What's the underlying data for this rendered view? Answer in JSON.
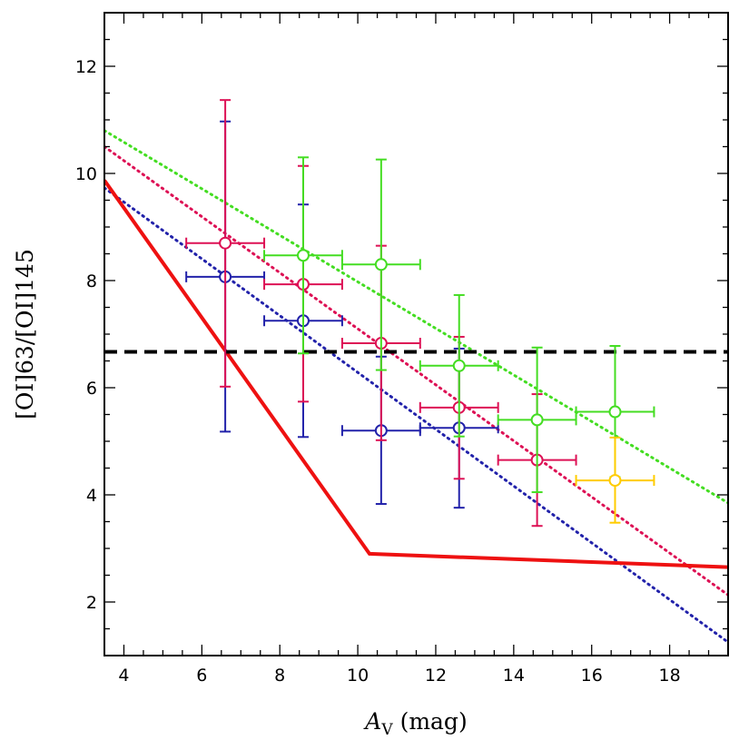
{
  "chart_data": {
    "type": "scatter",
    "xlabel_main": "A",
    "xlabel_sub": "V",
    "xlabel_unit": " (mag)",
    "ylabel": "[OI]63/[OI]145",
    "xlim": [
      3.5,
      19.5
    ],
    "ylim": [
      1.0,
      13.0
    ],
    "xticks": [
      4,
      6,
      8,
      10,
      12,
      14,
      16,
      18
    ],
    "yticks": [
      2,
      4,
      6,
      8,
      10,
      12
    ],
    "xminor": 0.5,
    "yminor": 0.5,
    "series": [
      {
        "name": "blue",
        "color": "#2222aa",
        "points": [
          {
            "x": 6.6,
            "y": 8.07,
            "xerr": 1.0,
            "ylo": 5.18,
            "yhi": 10.97
          },
          {
            "x": 8.6,
            "y": 7.25,
            "xerr": 1.0,
            "ylo": 5.08,
            "yhi": 9.42
          },
          {
            "x": 10.6,
            "y": 5.2,
            "xerr": 1.0,
            "ylo": 3.83,
            "yhi": 6.58
          },
          {
            "x": 12.6,
            "y": 5.25,
            "xerr": 1.0,
            "ylo": 3.76,
            "yhi": 6.73
          }
        ]
      },
      {
        "name": "magenta",
        "color": "#dd1155",
        "points": [
          {
            "x": 6.6,
            "y": 8.7,
            "xerr": 1.0,
            "ylo": 6.02,
            "yhi": 11.37
          },
          {
            "x": 8.6,
            "y": 7.93,
            "xerr": 1.0,
            "ylo": 5.74,
            "yhi": 10.14
          },
          {
            "x": 10.6,
            "y": 6.83,
            "xerr": 1.0,
            "ylo": 5.02,
            "yhi": 8.65
          },
          {
            "x": 12.6,
            "y": 5.63,
            "xerr": 1.0,
            "ylo": 4.3,
            "yhi": 6.95
          },
          {
            "x": 14.6,
            "y": 4.65,
            "xerr": 1.0,
            "ylo": 3.42,
            "yhi": 5.88
          }
        ]
      },
      {
        "name": "green",
        "color": "#44dd22",
        "points": [
          {
            "x": 8.6,
            "y": 8.47,
            "xerr": 1.0,
            "ylo": 6.64,
            "yhi": 10.3
          },
          {
            "x": 10.6,
            "y": 8.3,
            "xerr": 1.0,
            "ylo": 6.33,
            "yhi": 10.26
          },
          {
            "x": 12.6,
            "y": 6.41,
            "xerr": 1.0,
            "ylo": 5.09,
            "yhi": 7.73
          },
          {
            "x": 14.6,
            "y": 5.4,
            "xerr": 1.0,
            "ylo": 4.05,
            "yhi": 6.75
          },
          {
            "x": 16.6,
            "y": 5.55,
            "xerr": 1.0,
            "ylo": 4.33,
            "yhi": 6.78
          }
        ]
      },
      {
        "name": "yellow",
        "color": "#ffcc00",
        "points": [
          {
            "x": 16.6,
            "y": 4.27,
            "xerr": 1.0,
            "ylo": 3.48,
            "yhi": 5.07
          }
        ]
      }
    ],
    "lines": [
      {
        "name": "green-fit",
        "color": "#44dd22",
        "style": "dotted",
        "width": 3,
        "points": [
          [
            3.5,
            10.8
          ],
          [
            19.5,
            3.85
          ]
        ]
      },
      {
        "name": "magenta-fit",
        "color": "#dd1155",
        "style": "dotted",
        "width": 3,
        "points": [
          [
            3.5,
            10.5
          ],
          [
            19.5,
            2.13
          ]
        ]
      },
      {
        "name": "blue-fit",
        "color": "#2222aa",
        "style": "dotted",
        "width": 3,
        "points": [
          [
            3.5,
            9.73
          ],
          [
            19.5,
            1.25
          ]
        ]
      },
      {
        "name": "red-model",
        "color": "#ee1111",
        "style": "solid",
        "width": 4,
        "points": [
          [
            3.5,
            9.87
          ],
          [
            10.3,
            2.9
          ],
          [
            19.5,
            2.65
          ]
        ]
      },
      {
        "name": "reference-level",
        "color": "#000000",
        "style": "dashed",
        "width": 4,
        "points": [
          [
            3.5,
            6.67
          ],
          [
            19.5,
            6.67
          ]
        ]
      }
    ]
  }
}
